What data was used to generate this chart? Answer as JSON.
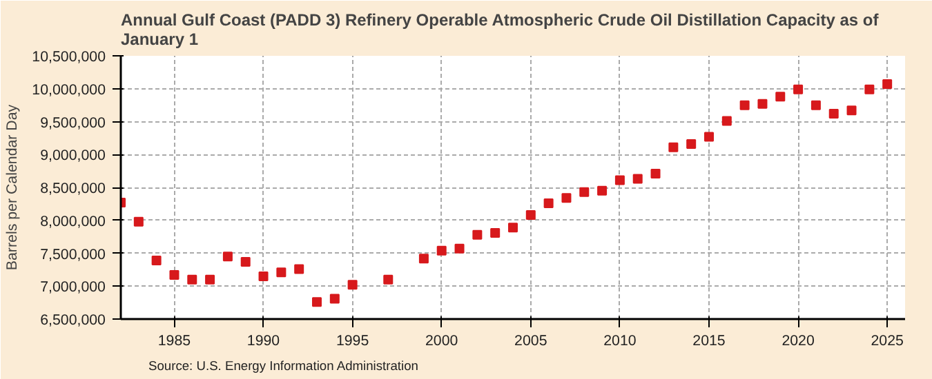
{
  "chart_data": {
    "type": "scatter",
    "title": "Annual Gulf Coast (PADD 3) Refinery Operable Atmospheric Crude Oil Distillation Capacity as of January  1",
    "ylabel": "Barrels per Calendar Day",
    "annotations": [
      "Source: U.S. Energy Information Administration"
    ],
    "x": [
      1982,
      1983,
      1984,
      1985,
      1986,
      1987,
      1988,
      1989,
      1990,
      1991,
      1992,
      1993,
      1994,
      1995,
      1997,
      1999,
      2000,
      2001,
      2002,
      2003,
      2004,
      2005,
      2006,
      2007,
      2008,
      2009,
      2010,
      2011,
      2012,
      2013,
      2014,
      2015,
      2016,
      2017,
      2018,
      2019,
      2020,
      2021,
      2022,
      2023,
      2024,
      2025
    ],
    "series": [
      {
        "color": "#d7191c",
        "values": [
          8270000,
          7980000,
          7390000,
          7170000,
          7100000,
          7100000,
          7450000,
          7370000,
          7150000,
          7210000,
          7260000,
          6760000,
          6810000,
          7020000,
          7100000,
          7420000,
          7540000,
          7570000,
          7780000,
          7810000,
          7890000,
          8080000,
          8260000,
          8340000,
          8430000,
          8450000,
          8610000,
          8630000,
          8710000,
          9110000,
          9160000,
          9270000,
          9510000,
          9750000,
          9770000,
          9880000,
          9990000,
          9750000,
          9620000,
          9670000,
          9990000,
          10070000
        ]
      }
    ],
    "xlim": [
      1982,
      2026
    ],
    "xticks": [
      1985,
      1990,
      1995,
      2000,
      2005,
      2010,
      2015,
      2020,
      2025
    ],
    "ylim": [
      6500000,
      10500000
    ],
    "yticks": [
      {
        "value": 6500000,
        "label": "6,500,000"
      },
      {
        "value": 7000000,
        "label": "7,000,000"
      },
      {
        "value": 7500000,
        "label": "7,500,000"
      },
      {
        "value": 8000000,
        "label": "8,000,000"
      },
      {
        "value": 8500000,
        "label": "8,500,000"
      },
      {
        "value": 9000000,
        "label": "9,000,000"
      },
      {
        "value": 9500000,
        "label": "9,500,000"
      },
      {
        "value": 10000000,
        "label": "10,000,000"
      },
      {
        "value": 10500000,
        "label": "10,500,000"
      }
    ],
    "grid": true,
    "marker": "square"
  }
}
